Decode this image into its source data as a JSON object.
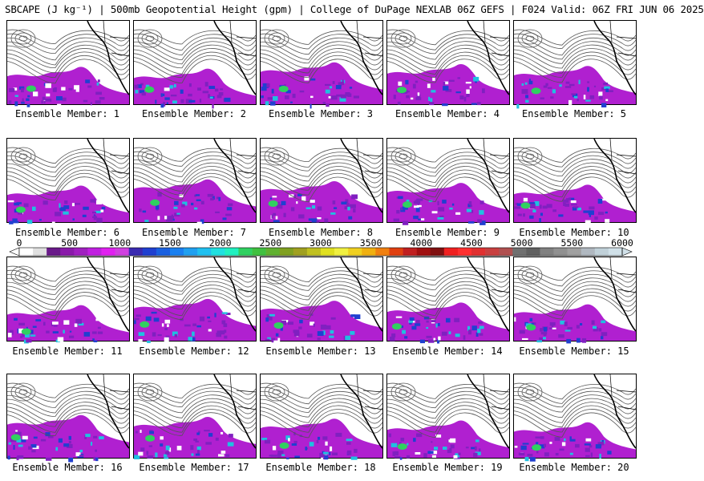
{
  "title": "SBCAPE (J kg⁻¹) | 500mb Geopotential Height (gpm) | College of DuPage NEXLAB 06Z GEFS | F024 Valid: 06Z FRI JUN 06 2025",
  "members": [
    {
      "label": "Ensemble Member: 1"
    },
    {
      "label": "Ensemble Member: 2"
    },
    {
      "label": "Ensemble Member: 3"
    },
    {
      "label": "Ensemble Member: 4"
    },
    {
      "label": "Ensemble Member: 5"
    },
    {
      "label": "Ensemble Member: 6"
    },
    {
      "label": "Ensemble Member: 7"
    },
    {
      "label": "Ensemble Member: 8"
    },
    {
      "label": "Ensemble Member: 9"
    },
    {
      "label": "Ensemble Member: 10"
    },
    {
      "label": "Ensemble Member: 11"
    },
    {
      "label": "Ensemble Member: 12"
    },
    {
      "label": "Ensemble Member: 13"
    },
    {
      "label": "Ensemble Member: 14"
    },
    {
      "label": "Ensemble Member: 15"
    },
    {
      "label": "Ensemble Member: 16"
    },
    {
      "label": "Ensemble Member: 17"
    },
    {
      "label": "Ensemble Member: 18"
    },
    {
      "label": "Ensemble Member: 19"
    },
    {
      "label": "Ensemble Member: 20"
    }
  ],
  "colorbar": {
    "ticks": [
      "0",
      "500",
      "1000",
      "1500",
      "2000",
      "2500",
      "3000",
      "3500",
      "4000",
      "4500",
      "5000",
      "5500",
      "6000"
    ],
    "min": 0,
    "max": 6000,
    "colors": [
      "#ffffff",
      "#e0e0e0",
      "#6a1a8a",
      "#8a1aaa",
      "#a020c0",
      "#c020e0",
      "#e020f0",
      "#d040e0",
      "#3a2ab0",
      "#2040d0",
      "#1a60e0",
      "#1a80f0",
      "#20a0f0",
      "#20c0f0",
      "#20e0e0",
      "#20f0c0",
      "#30d060",
      "#40c040",
      "#60b030",
      "#80a020",
      "#a0a020",
      "#c0c020",
      "#e0e020",
      "#f0f040",
      "#f0d020",
      "#f0b010",
      "#f08010",
      "#e04010",
      "#c02020",
      "#a01010",
      "#801010",
      "#f02020",
      "#ff3030",
      "#e03030",
      "#c84040",
      "#b05050",
      "#707070",
      "#606060",
      "#808080",
      "#909090",
      "#a0a0a0",
      "#b0b8c0",
      "#c0d0d8",
      "#d0e0e8"
    ]
  },
  "map_colors": {
    "cape_purple": "#b020d0",
    "cape_violet": "#8020c0",
    "cape_blue": "#2040d0",
    "cape_cyan": "#20c0e0",
    "cape_green": "#30d060",
    "contour": "#555555",
    "coast": "#000000"
  }
}
